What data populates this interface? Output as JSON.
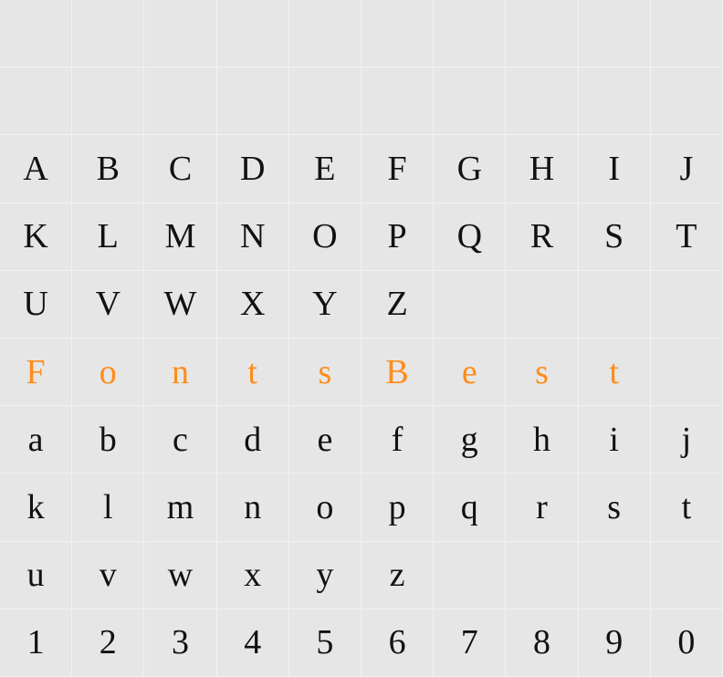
{
  "grid": {
    "columns": 10,
    "rows": 10,
    "background_color": "#e6e6e6",
    "grid_line_color": "#f2f2f2",
    "text_color": "#111111",
    "accent_color": "#ff8c1a",
    "font_size_pt": 30,
    "font_family": "serif",
    "rows_data": [
      {
        "chars": [
          "",
          "",
          "",
          "",
          "",
          "",
          "",
          "",
          "",
          ""
        ],
        "accent": false
      },
      {
        "chars": [
          "",
          "",
          "",
          "",
          "",
          "",
          "",
          "",
          "",
          ""
        ],
        "accent": false
      },
      {
        "chars": [
          "A",
          "B",
          "C",
          "D",
          "E",
          "F",
          "G",
          "H",
          "I",
          "J"
        ],
        "accent": false
      },
      {
        "chars": [
          "K",
          "L",
          "M",
          "N",
          "O",
          "P",
          "Q",
          "R",
          "S",
          "T"
        ],
        "accent": false
      },
      {
        "chars": [
          "U",
          "V",
          "W",
          "X",
          "Y",
          "Z",
          "",
          "",
          "",
          ""
        ],
        "accent": false
      },
      {
        "chars": [
          "F",
          "o",
          "n",
          "t",
          "s",
          "B",
          "e",
          "s",
          "t",
          ""
        ],
        "accent": true
      },
      {
        "chars": [
          "a",
          "b",
          "c",
          "d",
          "e",
          "f",
          "g",
          "h",
          "i",
          "j"
        ],
        "accent": false
      },
      {
        "chars": [
          "k",
          "l",
          "m",
          "n",
          "o",
          "p",
          "q",
          "r",
          "s",
          "t"
        ],
        "accent": false
      },
      {
        "chars": [
          "u",
          "v",
          "w",
          "x",
          "y",
          "z",
          "",
          "",
          "",
          ""
        ],
        "accent": false
      },
      {
        "chars": [
          "1",
          "2",
          "3",
          "4",
          "5",
          "6",
          "7",
          "8",
          "9",
          "0"
        ],
        "accent": false
      }
    ]
  }
}
